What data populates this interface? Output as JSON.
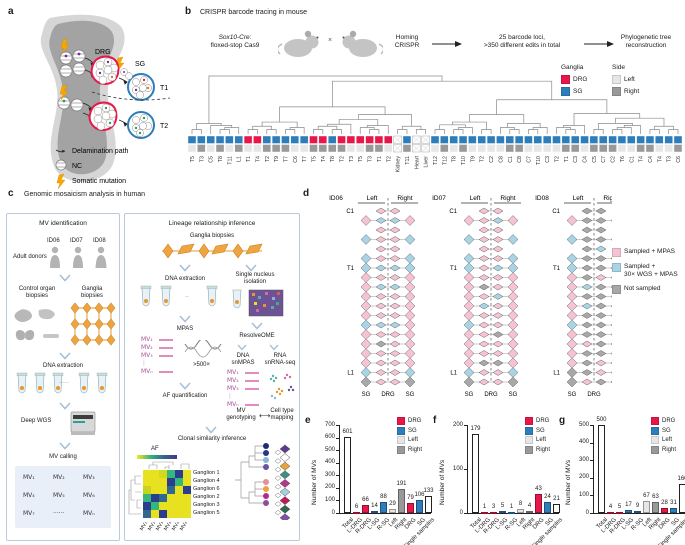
{
  "panels": {
    "a": {
      "label": "a",
      "annotations": {
        "drg": "DRG",
        "sg": "SG",
        "t1": "T1",
        "t2": "T2"
      },
      "legend": [
        {
          "icon": "arrow",
          "label": "Delamination path"
        },
        {
          "icon": "nc-cell",
          "label": "NC"
        },
        {
          "icon": "lightning",
          "label": "Somatic mutation"
        }
      ]
    },
    "b": {
      "label": "b",
      "title": "CRISPR barcode tracing in mouse",
      "genotype_line1": "Sox10-Cre:",
      "genotype_line2": "floxed-stop Cas9",
      "cross_symbol": "×",
      "steps": [
        "Homing\nCRISPR",
        "25 barcode loci,\n>350 different edits in total",
        "Phylogenetic tree\nreconstruction"
      ],
      "legend": {
        "ganglia_title": "Ganglia",
        "side_title": "Side",
        "ganglia_items": [
          {
            "label": "DRG",
            "color": "#e8174b"
          },
          {
            "label": "SG",
            "color": "#2d7dbb"
          }
        ],
        "side_items": [
          {
            "label": "Left",
            "color": "#e6e6e6"
          },
          {
            "label": "Right",
            "color": "#999999"
          }
        ]
      },
      "leaves": [
        {
          "label": "T5",
          "g": "SG",
          "s": "L"
        },
        {
          "label": "T3",
          "g": "SG",
          "s": "R"
        },
        {
          "label": "C5",
          "g": "SG",
          "s": "L"
        },
        {
          "label": "T8",
          "g": "SG",
          "s": "R"
        },
        {
          "label": "T11",
          "g": "SG",
          "s": "L"
        },
        {
          "label": "L1",
          "g": "SG",
          "s": "R"
        },
        {
          "label": "T1",
          "g": "DRG",
          "s": "L"
        },
        {
          "label": "T4",
          "g": "DRG",
          "s": "L"
        },
        {
          "label": "T2",
          "g": "SG",
          "s": "R"
        },
        {
          "label": "T9",
          "g": "SG",
          "s": "R"
        },
        {
          "label": "T7",
          "g": "SG",
          "s": "R"
        },
        {
          "label": "C6",
          "g": "SG",
          "s": "L"
        },
        {
          "label": "T7",
          "g": "SG",
          "s": "L"
        },
        {
          "label": "T5",
          "g": "DRG",
          "s": "R"
        },
        {
          "label": "T4",
          "g": "DRG",
          "s": "R"
        },
        {
          "label": "T8",
          "g": "SG",
          "s": "R"
        },
        {
          "label": "T2",
          "g": "DRG",
          "s": "R"
        },
        {
          "label": "T3",
          "g": "DRG",
          "s": "L"
        },
        {
          "label": "T5",
          "g": "DRG",
          "s": "L"
        },
        {
          "label": "T3",
          "g": "DRG",
          "s": "R"
        },
        {
          "label": "T1",
          "g": "DRG",
          "s": "R"
        },
        {
          "label": "T2",
          "g": "DRG",
          "s": "L"
        },
        {
          "label": "Kidney",
          "g": "organ",
          "s": null
        },
        {
          "label": "T11",
          "g": "SG",
          "s": "R"
        },
        {
          "label": "Heart",
          "g": "organ",
          "s": null
        },
        {
          "label": "Liver",
          "g": "organ",
          "s": null
        },
        {
          "label": "T12",
          "g": "SG",
          "s": "L"
        },
        {
          "label": "T12",
          "g": "SG",
          "s": "R"
        },
        {
          "label": "T8",
          "g": "SG",
          "s": "L"
        },
        {
          "label": "T10",
          "g": "SG",
          "s": "R"
        },
        {
          "label": "T9",
          "g": "SG",
          "s": "L"
        },
        {
          "label": "T2",
          "g": "SG",
          "s": "L"
        },
        {
          "label": "C2",
          "g": "SG",
          "s": "L"
        },
        {
          "label": "C8",
          "g": "SG",
          "s": "L"
        },
        {
          "label": "C1",
          "g": "SG",
          "s": "R"
        },
        {
          "label": "C8",
          "g": "SG",
          "s": "R"
        },
        {
          "label": "C7",
          "g": "SG",
          "s": "L"
        },
        {
          "label": "T10",
          "g": "SG",
          "s": "L"
        },
        {
          "label": "C3",
          "g": "SG",
          "s": "L"
        },
        {
          "label": "T2",
          "g": "SG",
          "s": "L"
        },
        {
          "label": "T1",
          "g": "SG",
          "s": "R"
        },
        {
          "label": "C3",
          "g": "SG",
          "s": "R"
        },
        {
          "label": "C4",
          "g": "SG",
          "s": "L"
        },
        {
          "label": "C5",
          "g": "SG",
          "s": "R"
        },
        {
          "label": "C7",
          "g": "SG",
          "s": "R"
        },
        {
          "label": "C2",
          "g": "SG",
          "s": "R"
        },
        {
          "label": "T6",
          "g": "SG",
          "s": "L"
        },
        {
          "label": "C1",
          "g": "SG",
          "s": "L"
        },
        {
          "label": "T4",
          "g": "SG",
          "s": "R"
        },
        {
          "label": "C4",
          "g": "SG",
          "s": "R"
        },
        {
          "label": "T4",
          "g": "SG",
          "s": "L"
        },
        {
          "label": "T3",
          "g": "SG",
          "s": "L"
        },
        {
          "label": "C6",
          "g": "SG",
          "s": "R"
        }
      ]
    },
    "c": {
      "label": "c",
      "title": "Genomic mosaicism analysis in human",
      "left_box": {
        "title": "MV identification",
        "donor_ids": [
          "ID06",
          "ID07",
          "ID08"
        ],
        "adult_donors": "Adult donors",
        "control_organ": "Control organ\nbiopsies",
        "ganglia_biopsies": "Ganglia\nbiopsies",
        "dna_extraction": "DNA extraction",
        "dots": "·····",
        "deep_wgs": "Deep WGS",
        "mv_calling": "MV calling",
        "mv_grid": [
          [
            "MV₁",
            "MV₂",
            "MV₃"
          ],
          [
            "MV₄",
            "MV₅",
            "MV₆"
          ],
          [
            "MV₇",
            "······",
            "MVₙ"
          ]
        ]
      },
      "right_box": {
        "title": "Lineage relationship inference",
        "ganglia_biopsies": "Ganglia biopsies",
        "dna_extraction": "DNA extraction",
        "single_nucleus": "Single nucleus\nisolation",
        "mpas": "MPAS",
        "resolveome": "ResolveOME",
        "coverage": ">500×",
        "mv_list": [
          "MV₁",
          "MV₂",
          "MV₃",
          "⋮",
          "MVₙ"
        ],
        "dna_snmpas": "DNA\nsnMPAS",
        "rna_snrna": "RNA\nsnRNA-seq",
        "af_quantification": "AF quantification",
        "mv_genotyping": "MV\ngenotyping",
        "map_arrow": "⟷",
        "cell_type_mapping": "Cell type\nmapping",
        "clonal": "Clonal similarity inference",
        "af_label": "AF",
        "heatmap_rows": [
          "Ganglion 1",
          "Ganglion 4",
          "Ganglion 6",
          "Ganglion 2",
          "Ganglion 3",
          "Ganglion 5"
        ],
        "heatmap_cols": [
          "MV₁",
          "MV₂",
          "MV₃",
          "MV₄",
          "MV₅",
          "MV₆"
        ],
        "heatmap_colors": [
          [
            "#e8e120",
            "#e8e120",
            "#d4d91f",
            "#35b779",
            "#2a3d8f",
            "#e8e120"
          ],
          [
            "#e8e120",
            "#e8e120",
            "#e8e120",
            "#2a3d8f",
            "#35b779",
            "#e8e120"
          ],
          [
            "#c9d41e",
            "#e8e120",
            "#e8e120",
            "#31688e",
            "#e8e120",
            "#2a3d8f"
          ],
          [
            "#35b779",
            "#2a3d8f",
            "#31688e",
            "#e8e120",
            "#e8e120",
            "#e8e120"
          ],
          [
            "#2a3d8f",
            "#35b779",
            "#e8e120",
            "#e8e120",
            "#e8e120",
            "#e8e120"
          ],
          [
            "#31688e",
            "#e8e120",
            "#2a3d8f",
            "#e8e120",
            "#e8e120",
            "#e8e120"
          ]
        ],
        "clone_dot_colors": [
          "#1f2d69",
          "#27348b",
          "#8ab4d8",
          "#6a51a3",
          "#e88ca0",
          "#e8a33b",
          "#b5288c",
          "#8c4d9e"
        ],
        "chain_colors": [
          "#5e3a8e",
          "#ffffff",
          "#e8a33b",
          "#3f8f82",
          "#b5348c",
          "#a8cfe0",
          "#c2185b",
          "#2d6a4f",
          "#7b52a8"
        ]
      }
    },
    "d": {
      "label": "d",
      "bottom_labels": [
        "SG",
        "DRG",
        "SG"
      ],
      "header_left": "Left",
      "header_right": "Right",
      "row_labels": {
        "0": "C1",
        "6": "T1",
        "17": "L1"
      },
      "donors": [
        {
          "id": "ID06",
          "rows": [
            "-PP-",
            "PBBP",
            "-PP-",
            "BPPB",
            "-PP-",
            "BPPB",
            "BBBB",
            "PPPP",
            "PBBP",
            "PPPP",
            "PPPP",
            "PPPP",
            "BBBP",
            "PPPP",
            "PGPP",
            "PPPP",
            "PPPP",
            "BPPB",
            "GPPG"
          ]
        },
        {
          "id": "ID07",
          "rows": [
            "-PP-",
            "PPBP",
            "-PP-",
            "BPPB",
            "-PP-",
            "BPPB",
            "BPBB",
            "PPPP",
            "PGPP",
            "PPBP",
            "PBPP",
            "PPPP",
            "BPPP",
            "PPGP",
            "PPPP",
            "PPPP",
            "PGGP",
            "BPPB",
            "GPPG"
          ]
        },
        {
          "id": "ID08",
          "rows": [
            "-GG-",
            "PGGP",
            "-GG-",
            "BGGB",
            "-GB-",
            "BGGG",
            "BGGB",
            "PGPP",
            "PBGP",
            "PGGP",
            "PBGP",
            "PGGP",
            "BGGB",
            "PGGP",
            "PPGP",
            "PGGP",
            "PGPP",
            "GGPP",
            "GPGG"
          ]
        }
      ],
      "legend": [
        {
          "label": "Sampled + MPAS",
          "color": "#f6c3d2"
        },
        {
          "label": "Sampled +\n30× WGS + MPAS",
          "color": "#a8d4e6"
        },
        {
          "label": "Not sampled",
          "color": "#a8a8a8"
        }
      ],
      "colors": {
        "P": "#f6c3d2",
        "B": "#a8d4e6",
        "G": "#a8a8a8"
      }
    }
  },
  "chart_data": [
    {
      "type": "bar",
      "panel": "e",
      "ylabel": "Number of MVs",
      "ylim": [
        0,
        700
      ],
      "yticks": [
        0,
        100,
        200,
        300,
        400,
        500,
        600,
        700
      ],
      "categories": [
        "Total",
        "L-DRG",
        "R-DRG",
        "L-SG",
        "R-SG",
        "Left",
        "Right",
        "DRG",
        "SG",
        "Single samples"
      ],
      "values": [
        601,
        6,
        66,
        14,
        88,
        29,
        191,
        79,
        106,
        133
      ],
      "bar_colors": [
        "white",
        "drg",
        "drg",
        "sg",
        "sg",
        "left",
        "right",
        "drg",
        "sg",
        "white"
      ],
      "legend": [
        {
          "label": "DRG",
          "color": "#e8174b"
        },
        {
          "label": "SG",
          "color": "#2d7dbb"
        },
        {
          "label": "Left",
          "color": "#e6e6e6"
        },
        {
          "label": "Right",
          "color": "#999999"
        }
      ],
      "grid": false,
      "legend_position": "top-right"
    },
    {
      "type": "bar",
      "panel": "f",
      "ylabel": "Number of MVs",
      "ylim": [
        0,
        200
      ],
      "yticks": [
        0,
        100,
        200
      ],
      "categories": [
        "Total",
        "L-DRG",
        "R-DRG",
        "L-SG",
        "R-SG",
        "Left",
        "Right",
        "DRG",
        "SG",
        "Single samples"
      ],
      "values": [
        179,
        1,
        3,
        5,
        1,
        8,
        4,
        43,
        24,
        21
      ],
      "bar_colors": [
        "white",
        "drg",
        "drg",
        "sg",
        "sg",
        "left",
        "right",
        "drg",
        "sg",
        "white"
      ],
      "legend": [
        {
          "label": "DRG",
          "color": "#e8174b"
        },
        {
          "label": "SG",
          "color": "#2d7dbb"
        },
        {
          "label": "Left",
          "color": "#e6e6e6"
        },
        {
          "label": "Right",
          "color": "#999999"
        }
      ],
      "grid": false,
      "legend_position": "top-right"
    },
    {
      "type": "bar",
      "panel": "g",
      "ylabel": "Number of MVs",
      "ylim": [
        0,
        500
      ],
      "yticks": [
        0,
        100,
        200,
        300,
        400,
        500
      ],
      "categories": [
        "Total",
        "L-DRG",
        "R-DRG",
        "L-SG",
        "R-SG",
        "Left",
        "Right",
        "DRG",
        "SG",
        "Single samples"
      ],
      "values": [
        500,
        4,
        5,
        17,
        9,
        67,
        63,
        28,
        31,
        166
      ],
      "bar_colors": [
        "white",
        "drg",
        "drg",
        "sg",
        "sg",
        "left",
        "right",
        "drg",
        "sg",
        "white"
      ],
      "legend": [
        {
          "label": "DRG",
          "color": "#e8174b"
        },
        {
          "label": "SG",
          "color": "#2d7dbb"
        },
        {
          "label": "Left",
          "color": "#e6e6e6"
        },
        {
          "label": "Right",
          "color": "#999999"
        }
      ],
      "grid": false,
      "legend_position": "top-right"
    }
  ],
  "palette": {
    "white": "#ffffff",
    "drg": "#e8174b",
    "sg": "#2d7dbb",
    "left": "#e6e6e6",
    "right": "#999999"
  }
}
